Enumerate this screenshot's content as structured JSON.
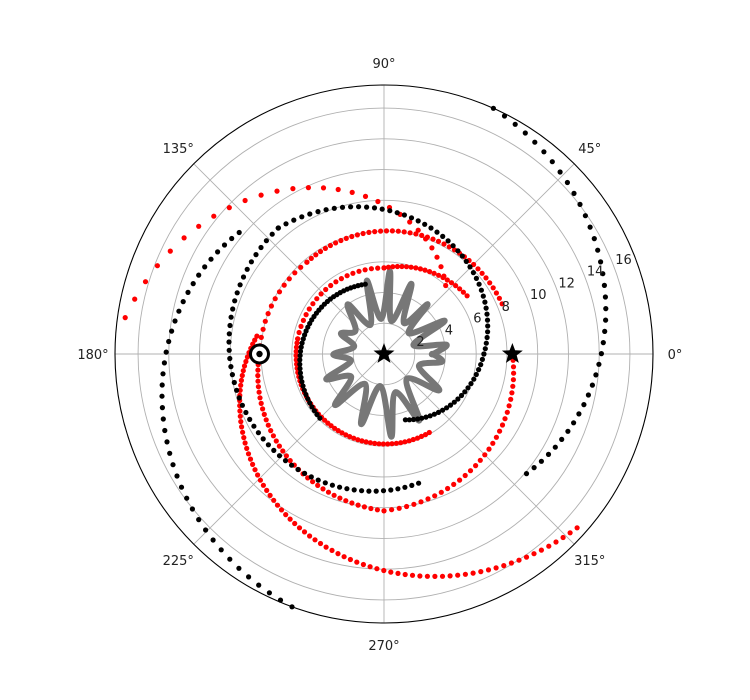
{
  "chart_data": {
    "type": "scatter",
    "projection": "polar",
    "title": "",
    "xlabel": "",
    "ylabel": "",
    "rlim": [
      0,
      17.5
    ],
    "grid": true,
    "legend": "none",
    "angle_ticks": [
      {
        "deg": 0,
        "label": "0°"
      },
      {
        "deg": 45,
        "label": "45°"
      },
      {
        "deg": 90,
        "label": "90°"
      },
      {
        "deg": 135,
        "label": "135°"
      },
      {
        "deg": 180,
        "label": "180°"
      },
      {
        "deg": 225,
        "label": "225°"
      },
      {
        "deg": 270,
        "label": "270°"
      },
      {
        "deg": 315,
        "label": "315°"
      }
    ],
    "radial_ticks": [
      {
        "r": 2,
        "label": "2"
      },
      {
        "r": 4,
        "label": "4"
      },
      {
        "r": 6,
        "label": "6"
      },
      {
        "r": 8,
        "label": "8"
      },
      {
        "r": 10,
        "label": "10"
      },
      {
        "r": 12,
        "label": "12"
      },
      {
        "r": 14,
        "label": "14"
      },
      {
        "r": 16,
        "label": "16"
      }
    ],
    "series": [
      {
        "kind": "spiral",
        "color": "#ff0000",
        "theta_start_deg": 48,
        "theta_end_deg": 172,
        "r_start": 6.0,
        "r_end": 17.0,
        "count": 29
      },
      {
        "kind": "spiral",
        "color": "#ff0000",
        "theta_start_deg": 172,
        "theta_end_deg": 318,
        "r_start": 8.35,
        "r_end": 16.9,
        "count": 80
      },
      {
        "kind": "spiral",
        "color": "#ff0000",
        "theta_start_deg": 23,
        "theta_end_deg": 130,
        "r_start": 8.35,
        "r_end": 7.8,
        "count": 40
      },
      {
        "kind": "spiral",
        "color": "#ff0000",
        "theta_start_deg": -90,
        "theta_end_deg": 0,
        "r_start": 10.2,
        "r_end": 8.35,
        "count": 33
      },
      {
        "kind": "spiral",
        "color": "#ff0000",
        "theta_start_deg": -180,
        "theta_end_deg": -90,
        "r_start": 8.1,
        "r_end": 10.2,
        "count": 38
      },
      {
        "kind": "spiral",
        "color": "#ff0000",
        "theta_start_deg": 130,
        "theta_end_deg": 180,
        "r_start": 7.8,
        "r_end": 8.1,
        "count": 14
      },
      {
        "kind": "spiral",
        "color": "#ff0000",
        "theta_start_deg": 35,
        "theta_end_deg": 90,
        "r_start": 6.6,
        "r_end": 5.6,
        "count": 20
      },
      {
        "kind": "spiral",
        "color": "#ff0000",
        "theta_start_deg": 90,
        "theta_end_deg": 170,
        "r_start": 5.6,
        "r_end": 5.7,
        "count": 20
      },
      {
        "kind": "spiral",
        "color": "#ff0000",
        "theta_start_deg": 170,
        "theta_end_deg": 300,
        "r_start": 5.7,
        "r_end": 5.9,
        "count": 48
      },
      {
        "kind": "spiral",
        "color": "#000000",
        "theta_start_deg": -72,
        "theta_end_deg": 0,
        "r_start": 4.5,
        "r_end": 6.5,
        "count": 24
      },
      {
        "kind": "spiral",
        "color": "#000000",
        "theta_start_deg": 0,
        "theta_end_deg": 130,
        "r_start": 6.5,
        "r_end": 10.7,
        "count": 44
      },
      {
        "kind": "spiral",
        "color": "#000000",
        "theta_start_deg": 130,
        "theta_end_deg": 285,
        "r_start": 10.7,
        "r_end": 8.7,
        "count": 52
      },
      {
        "kind": "spiral",
        "color": "#000000",
        "theta_start_deg": 105,
        "theta_end_deg": 225,
        "r_start": 4.7,
        "r_end": 5.9,
        "count": 42
      },
      {
        "kind": "spiral",
        "color": "#000000",
        "theta_start_deg": -40,
        "theta_end_deg": 66,
        "r_start": 12.1,
        "r_end": 17.5,
        "count": 38
      },
      {
        "kind": "spiral",
        "color": "#000000",
        "theta_start_deg": 140,
        "theta_end_deg": 250,
        "r_start": 12.3,
        "r_end": 17.5,
        "count": 40
      }
    ],
    "gray_curve": {
      "color": "#777777",
      "points": [
        [
          0.0,
          3.2
        ],
        [
          0.15,
          4.1
        ],
        [
          0.3,
          2.0
        ],
        [
          0.5,
          4.5
        ],
        [
          0.7,
          2.1
        ],
        [
          0.85,
          4.3
        ],
        [
          1.0,
          2.4
        ],
        [
          1.2,
          4.9
        ],
        [
          1.35,
          2.2
        ],
        [
          1.5,
          5.4
        ],
        [
          1.65,
          2.3
        ],
        [
          1.8,
          4.9
        ],
        [
          2.0,
          2.1
        ],
        [
          2.2,
          4.0
        ],
        [
          2.45,
          2.4
        ],
        [
          2.7,
          3.1
        ],
        [
          2.9,
          2.0
        ],
        [
          3.15,
          3.3
        ],
        [
          3.35,
          2.2
        ],
        [
          3.55,
          4.1
        ],
        [
          3.75,
          2.6
        ],
        [
          3.95,
          4.6
        ],
        [
          4.15,
          2.3
        ],
        [
          4.4,
          4.8
        ],
        [
          4.6,
          2.1
        ],
        [
          4.8,
          5.4
        ],
        [
          5.0,
          2.6
        ],
        [
          5.2,
          4.9
        ],
        [
          5.45,
          2.2
        ],
        [
          5.7,
          4.3
        ],
        [
          5.95,
          2.4
        ],
        [
          6.15,
          3.8
        ],
        [
          6.28,
          3.2
        ]
      ]
    },
    "markers": [
      {
        "name": "star-center",
        "theta_deg": 0,
        "r": 0,
        "shape": "star",
        "color": "#000000"
      },
      {
        "name": "star-right",
        "theta_deg": 0,
        "r": 8.35,
        "shape": "star",
        "color": "#000000"
      },
      {
        "name": "target-left",
        "theta_deg": 180,
        "r": 8.1,
        "shape": "target",
        "color": "#000000"
      }
    ]
  }
}
